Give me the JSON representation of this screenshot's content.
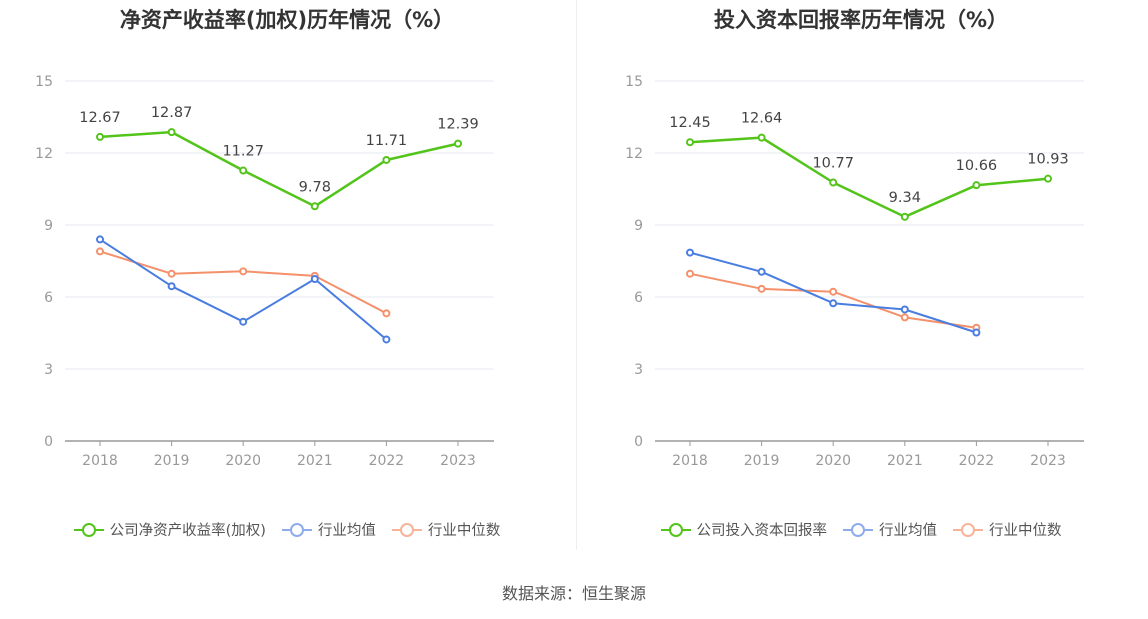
{
  "source_text": "数据来源：恒生聚源",
  "chart_data": [
    {
      "type": "line",
      "title": "净资产收益率(加权)历年情况（%）",
      "categories": [
        "2018",
        "2019",
        "2020",
        "2021",
        "2022",
        "2023"
      ],
      "ylim": [
        0,
        15
      ],
      "yticks": [
        "0",
        "3",
        "6",
        "9",
        "12",
        "15"
      ],
      "grid": true,
      "legend_position": "bottom",
      "series": [
        {
          "name": "公司净资产收益率(加权)",
          "color": "#52c41a",
          "values": [
            12.67,
            12.87,
            11.27,
            9.78,
            11.71,
            12.39
          ],
          "labels": [
            "12.67",
            "12.87",
            "11.27",
            "9.78",
            "11.71",
            "12.39"
          ]
        },
        {
          "name": "行业均值",
          "color": "#4a7de0",
          "values": [
            8.4,
            6.45,
            4.97,
            6.75,
            4.23,
            null
          ]
        },
        {
          "name": "行业中位数",
          "color": "#f4906a",
          "values": [
            7.9,
            6.97,
            7.07,
            6.88,
            5.32,
            null
          ]
        }
      ]
    },
    {
      "type": "line",
      "title": "投入资本回报率历年情况（%）",
      "categories": [
        "2018",
        "2019",
        "2020",
        "2021",
        "2022",
        "2023"
      ],
      "ylim": [
        0,
        15
      ],
      "yticks": [
        "0",
        "3",
        "6",
        "9",
        "12",
        "15"
      ],
      "grid": true,
      "legend_position": "bottom",
      "series": [
        {
          "name": "公司投入资本回报率",
          "color": "#52c41a",
          "values": [
            12.45,
            12.64,
            10.77,
            9.34,
            10.66,
            10.93
          ],
          "labels": [
            "12.45",
            "12.64",
            "10.77",
            "9.34",
            "10.66",
            "10.93"
          ]
        },
        {
          "name": "行业均值",
          "color": "#4a7de0",
          "values": [
            7.85,
            7.05,
            5.74,
            5.48,
            4.52,
            null
          ]
        },
        {
          "name": "行业中位数",
          "color": "#f4906a",
          "values": [
            6.97,
            6.34,
            6.22,
            5.15,
            4.72,
            null
          ]
        }
      ]
    }
  ]
}
